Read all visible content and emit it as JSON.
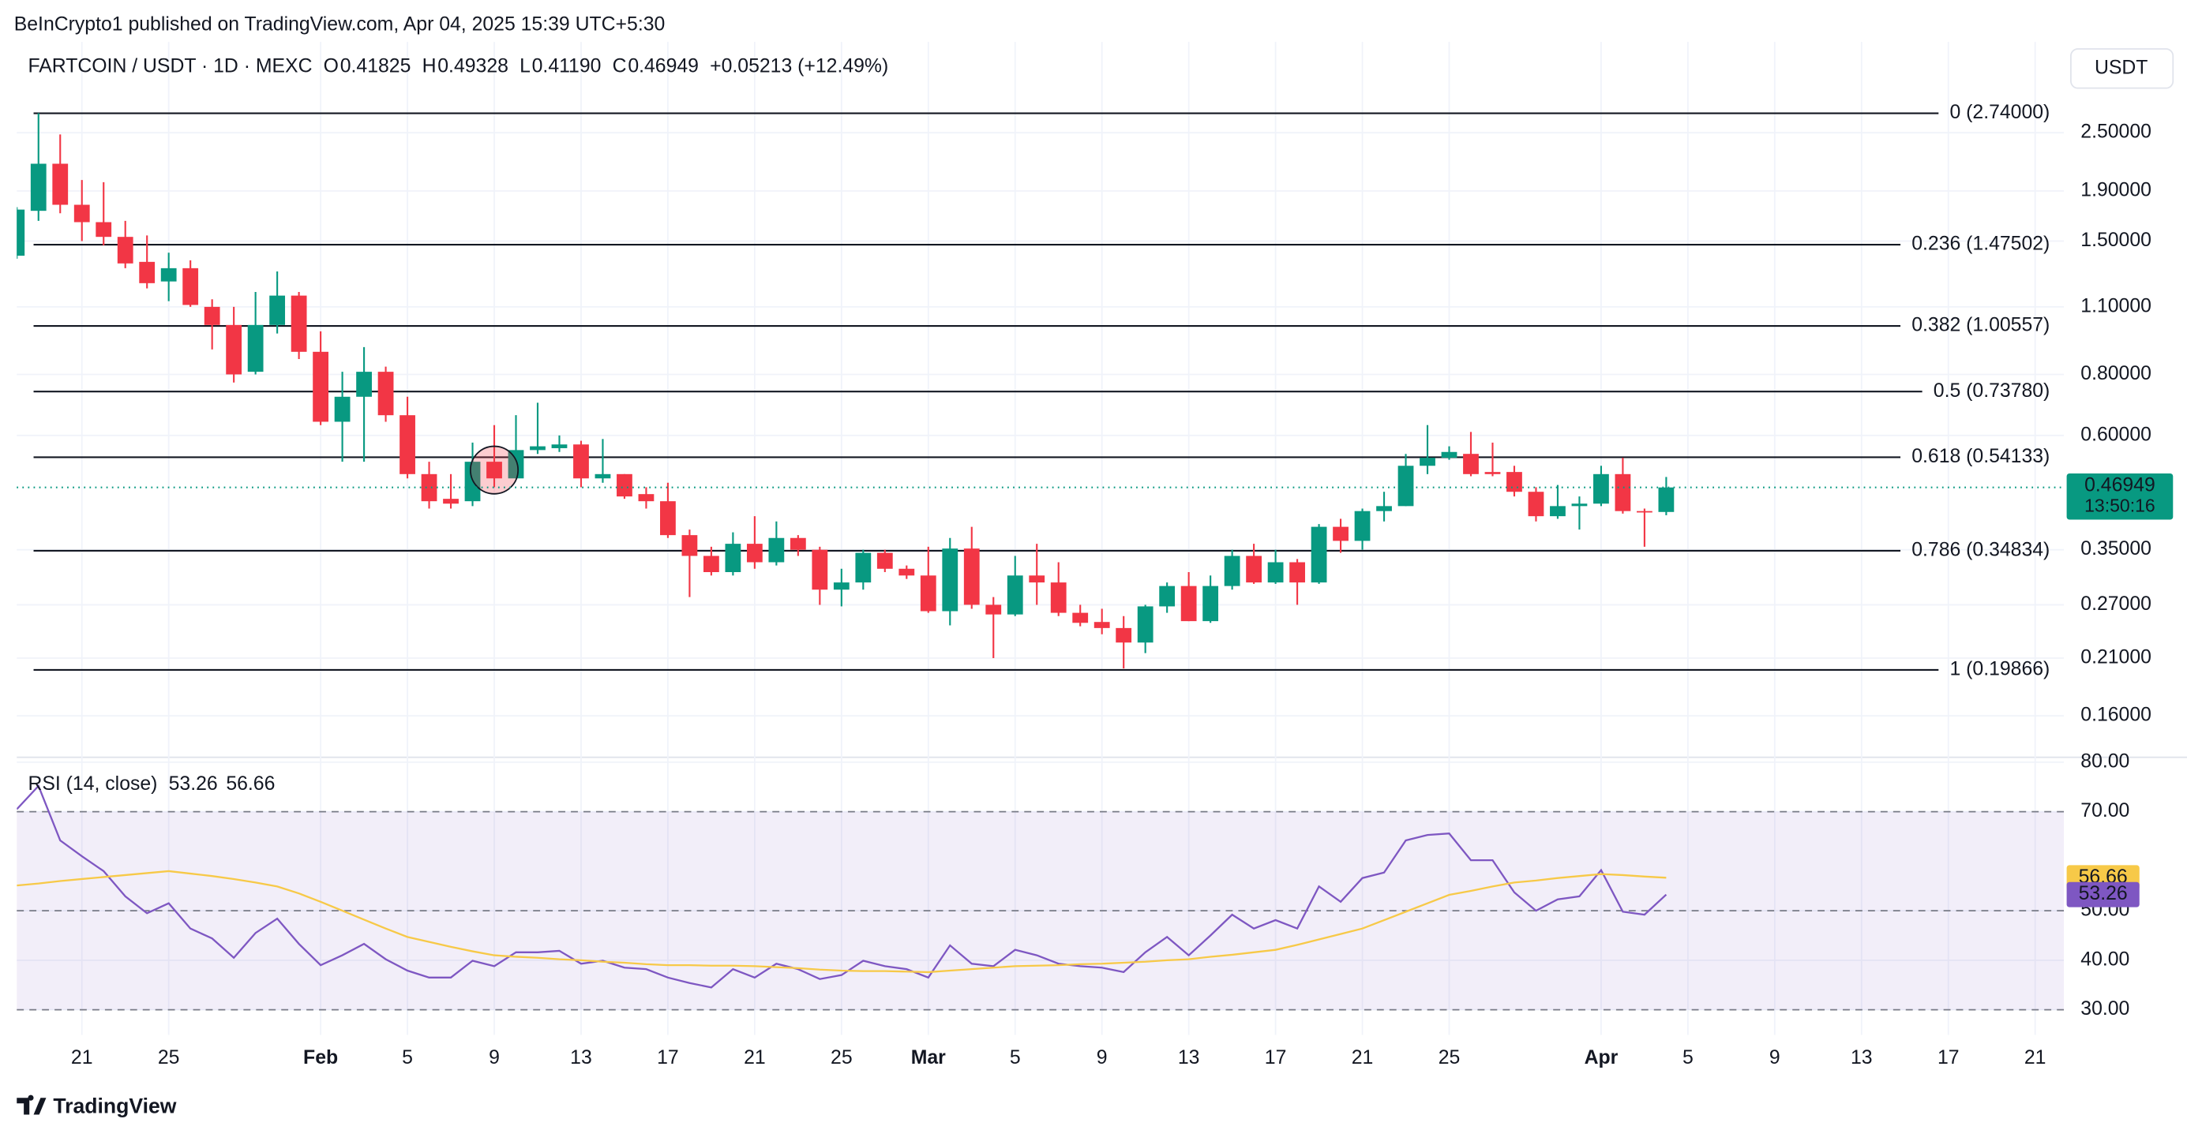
{
  "header": {
    "published": "BeInCrypto1 published on TradingView.com, Apr 04, 2025 15:39 UTC+5:30",
    "symbol": "FARTCOIN / USDT · 1D · MEXC",
    "ohlc": [
      {
        "key": "O",
        "value": "0.41825"
      },
      {
        "key": "H",
        "value": "0.49328"
      },
      {
        "key": "L",
        "value": "0.41190"
      },
      {
        "key": "C",
        "value": "0.46949"
      }
    ],
    "change": "+0.05213 (+12.49%)",
    "currency": "USDT",
    "countdown": "13:50:16",
    "logo": "TradingView"
  },
  "chart_data": [
    {
      "type": "candlestick",
      "log": true,
      "grid": true,
      "up_color": "#089981",
      "down_color": "#f23645",
      "xlim": [
        "2025-01-18",
        "2025-04-22"
      ],
      "x": [
        "2025-01-18",
        "2025-01-19",
        "2025-01-20",
        "2025-01-21",
        "2025-01-22",
        "2025-01-23",
        "2025-01-24",
        "2025-01-25",
        "2025-01-26",
        "2025-01-27",
        "2025-01-28",
        "2025-01-29",
        "2025-01-30",
        "2025-01-31",
        "2025-02-01",
        "2025-02-02",
        "2025-02-03",
        "2025-02-04",
        "2025-02-05",
        "2025-02-06",
        "2025-02-07",
        "2025-02-08",
        "2025-02-09",
        "2025-02-10",
        "2025-02-11",
        "2025-02-12",
        "2025-02-13",
        "2025-02-14",
        "2025-02-15",
        "2025-02-16",
        "2025-02-17",
        "2025-02-18",
        "2025-02-19",
        "2025-02-20",
        "2025-02-21",
        "2025-02-22",
        "2025-02-23",
        "2025-02-24",
        "2025-02-25",
        "2025-02-26",
        "2025-02-27",
        "2025-02-28",
        "2025-03-01",
        "2025-03-02",
        "2025-03-03",
        "2025-03-04",
        "2025-03-05",
        "2025-03-06",
        "2025-03-07",
        "2025-03-08",
        "2025-03-09",
        "2025-03-10",
        "2025-03-11",
        "2025-03-12",
        "2025-03-13",
        "2025-03-14",
        "2025-03-15",
        "2025-03-16",
        "2025-03-17",
        "2025-03-18",
        "2025-03-19",
        "2025-03-20",
        "2025-03-21",
        "2025-03-22",
        "2025-03-23",
        "2025-03-24",
        "2025-03-25",
        "2025-03-26",
        "2025-03-27",
        "2025-03-28",
        "2025-03-29",
        "2025-03-30",
        "2025-03-31",
        "2025-04-01",
        "2025-04-02",
        "2025-04-03",
        "2025-04-04"
      ],
      "open": [
        1.4,
        1.73,
        2.16,
        1.78,
        1.64,
        1.53,
        1.36,
        1.24,
        1.32,
        1.1,
        1.01,
        0.81,
        1.01,
        1.16,
        0.89,
        0.64,
        0.72,
        0.81,
        0.66,
        0.5,
        0.445,
        0.44,
        0.53,
        0.49,
        0.56,
        0.565,
        0.575,
        0.49,
        0.5,
        0.455,
        0.44,
        0.375,
        0.34,
        0.315,
        0.36,
        0.33,
        0.37,
        0.35,
        0.29,
        0.3,
        0.345,
        0.32,
        0.31,
        0.262,
        0.352,
        0.27,
        0.258,
        0.31,
        0.3,
        0.26,
        0.249,
        0.242,
        0.226,
        0.268,
        0.295,
        0.25,
        0.295,
        0.34,
        0.3,
        0.33,
        0.3,
        0.39,
        0.365,
        0.42,
        0.43,
        0.52,
        0.54,
        0.55,
        0.505,
        0.505,
        0.46,
        0.41,
        0.43,
        0.435,
        0.5,
        0.42,
        0.41825
      ],
      "high": [
        1.76,
        2.74,
        2.48,
        2.0,
        1.98,
        1.65,
        1.54,
        1.42,
        1.37,
        1.14,
        1.1,
        1.18,
        1.3,
        1.18,
        0.98,
        0.81,
        0.91,
        0.83,
        0.72,
        0.53,
        0.5,
        0.58,
        0.63,
        0.66,
        0.7,
        0.6,
        0.585,
        0.59,
        0.5,
        0.47,
        0.48,
        0.385,
        0.355,
        0.38,
        0.41,
        0.4,
        0.375,
        0.355,
        0.32,
        0.35,
        0.35,
        0.325,
        0.355,
        0.37,
        0.39,
        0.28,
        0.34,
        0.36,
        0.33,
        0.27,
        0.265,
        0.256,
        0.27,
        0.3,
        0.315,
        0.31,
        0.35,
        0.36,
        0.35,
        0.335,
        0.395,
        0.405,
        0.425,
        0.46,
        0.55,
        0.63,
        0.57,
        0.61,
        0.58,
        0.52,
        0.47,
        0.475,
        0.45,
        0.52,
        0.54,
        0.425,
        0.49328
      ],
      "low": [
        1.38,
        1.65,
        1.71,
        1.5,
        1.47,
        1.32,
        1.2,
        1.13,
        1.1,
        0.9,
        0.77,
        0.8,
        0.97,
        0.86,
        0.63,
        0.53,
        0.53,
        0.64,
        0.49,
        0.425,
        0.425,
        0.43,
        0.47,
        0.49,
        0.55,
        0.555,
        0.47,
        0.48,
        0.445,
        0.425,
        0.37,
        0.28,
        0.31,
        0.31,
        0.32,
        0.325,
        0.34,
        0.27,
        0.268,
        0.29,
        0.315,
        0.305,
        0.26,
        0.245,
        0.265,
        0.21,
        0.256,
        0.27,
        0.256,
        0.244,
        0.235,
        0.2,
        0.215,
        0.26,
        0.25,
        0.248,
        0.29,
        0.298,
        0.298,
        0.27,
        0.298,
        0.345,
        0.35,
        0.4,
        0.43,
        0.5,
        0.535,
        0.495,
        0.495,
        0.45,
        0.4,
        0.405,
        0.385,
        0.43,
        0.415,
        0.355,
        0.4119
      ],
      "close": [
        1.74,
        2.16,
        1.78,
        1.64,
        1.53,
        1.35,
        1.23,
        1.32,
        1.11,
        1.01,
        0.8,
        1.01,
        1.16,
        0.89,
        0.64,
        0.72,
        0.81,
        0.66,
        0.5,
        0.44,
        0.435,
        0.53,
        0.49,
        0.56,
        0.57,
        0.575,
        0.49,
        0.5,
        0.45,
        0.44,
        0.375,
        0.34,
        0.315,
        0.36,
        0.33,
        0.37,
        0.35,
        0.29,
        0.3,
        0.345,
        0.32,
        0.31,
        0.262,
        0.352,
        0.27,
        0.258,
        0.31,
        0.3,
        0.26,
        0.248,
        0.242,
        0.226,
        0.268,
        0.295,
        0.25,
        0.295,
        0.34,
        0.3,
        0.33,
        0.3,
        0.39,
        0.365,
        0.42,
        0.43,
        0.52,
        0.54,
        0.555,
        0.5,
        0.5,
        0.46,
        0.41,
        0.43,
        0.435,
        0.5,
        0.42,
        0.418,
        0.46949
      ],
      "ylim": [
        0.132,
        3.835
      ],
      "yticks": [
        {
          "value": 2.5,
          "label": "2.50000"
        },
        {
          "value": 1.9,
          "label": "1.90000"
        },
        {
          "value": 1.5,
          "label": "1.50000"
        },
        {
          "value": 1.1,
          "label": "1.10000"
        },
        {
          "value": 0.8,
          "label": "0.80000"
        },
        {
          "value": 0.6,
          "label": "0.60000"
        },
        {
          "value": 0.35,
          "label": "0.35000"
        },
        {
          "value": 0.27,
          "label": "0.27000"
        },
        {
          "value": 0.21,
          "label": "0.21000"
        },
        {
          "value": 0.16,
          "label": "0.16000"
        }
      ],
      "xticks": [
        {
          "value": "2025-01-21",
          "label": "21"
        },
        {
          "value": "2025-01-25",
          "label": "25"
        },
        {
          "value": "2025-02-01",
          "label": "Feb"
        },
        {
          "value": "2025-02-05",
          "label": "5"
        },
        {
          "value": "2025-02-09",
          "label": "9"
        },
        {
          "value": "2025-02-13",
          "label": "13"
        },
        {
          "value": "2025-02-17",
          "label": "17"
        },
        {
          "value": "2025-02-21",
          "label": "21"
        },
        {
          "value": "2025-02-25",
          "label": "25"
        },
        {
          "value": "2025-03-01",
          "label": "Mar"
        },
        {
          "value": "2025-03-05",
          "label": "5"
        },
        {
          "value": "2025-03-09",
          "label": "9"
        },
        {
          "value": "2025-03-13",
          "label": "13"
        },
        {
          "value": "2025-03-17",
          "label": "17"
        },
        {
          "value": "2025-03-21",
          "label": "21"
        },
        {
          "value": "2025-03-25",
          "label": "25"
        },
        {
          "value": "2025-04-01",
          "label": "Apr"
        },
        {
          "value": "2025-04-05",
          "label": "5"
        },
        {
          "value": "2025-04-09",
          "label": "9"
        },
        {
          "value": "2025-04-13",
          "label": "13"
        },
        {
          "value": "2025-04-17",
          "label": "17"
        },
        {
          "value": "2025-04-21",
          "label": "21"
        }
      ],
      "fib_levels": [
        {
          "value": 2.74,
          "label": "0 (2.74000)"
        },
        {
          "value": 1.47502,
          "label": "0.236 (1.47502)"
        },
        {
          "value": 1.00557,
          "label": "0.382 (1.00557)"
        },
        {
          "value": 0.7378,
          "label": "0.5 (0.73780)"
        },
        {
          "value": 0.54133,
          "label": "0.618 (0.54133)"
        },
        {
          "value": 0.34834,
          "label": "0.786 (0.34834)"
        },
        {
          "value": 0.19866,
          "label": "1 (0.19866)"
        }
      ]
    },
    {
      "type": "line",
      "title": "RSI (14, close)",
      "ylim": [
        24.92,
        81.13
      ],
      "yticks": [
        {
          "value": 80,
          "label": "80.00"
        },
        {
          "value": 70,
          "label": "70.00"
        },
        {
          "value": 50,
          "label": "50.00"
        },
        {
          "value": 40,
          "label": "40.00"
        },
        {
          "value": 30,
          "label": "30.00"
        }
      ],
      "levels": [
        70,
        50,
        30
      ],
      "series": [
        {
          "name": "RSI",
          "color": "#7e57c2",
          "values": [
            70.5,
            75.2,
            64.2,
            61,
            58,
            52.9,
            49.5,
            51.5,
            46.4,
            44.4,
            40.5,
            45.5,
            48.4,
            43.3,
            39,
            41,
            43.3,
            40.2,
            37.9,
            36.5,
            36.5,
            39.9,
            38.8,
            41.6,
            41.6,
            41.9,
            39.3,
            39.9,
            38.5,
            38.2,
            36.5,
            35.4,
            34.5,
            38.2,
            36.5,
            39.3,
            38.2,
            36.2,
            37,
            39.9,
            38.8,
            38.2,
            36.5,
            43,
            39.3,
            38.8,
            42.1,
            41,
            39.3,
            38.8,
            38.5,
            37.6,
            41.6,
            44.7,
            41,
            45,
            49.2,
            46.4,
            48.1,
            46.4,
            54.9,
            51.8,
            56.6,
            57.7,
            64.2,
            65.3,
            65.6,
            60.2,
            60.2,
            53.7,
            50,
            52.3,
            52.9,
            58.2,
            49.8,
            49.2,
            53.26
          ]
        },
        {
          "name": "RSI MA",
          "color": "#f7c948",
          "values": [
            55.1,
            55.5,
            56,
            56.4,
            56.8,
            57.2,
            57.6,
            58.0,
            57.5,
            57,
            56.4,
            55.7,
            54.9,
            53.5,
            51.8,
            50,
            48.2,
            46.4,
            44.7,
            43.7,
            42.7,
            41.8,
            41.0,
            40.7,
            40.5,
            40.2,
            40,
            39.7,
            39.5,
            39.2,
            39.0,
            39,
            38.9,
            38.9,
            38.8,
            38.6,
            38.4,
            38.1,
            37.9,
            37.8,
            37.8,
            37.7,
            37.6,
            37.9,
            38.2,
            38.5,
            38.8,
            38.9,
            39,
            39.2,
            39.3,
            39.5,
            39.7,
            40,
            40.2,
            40.7,
            41.1,
            41.6,
            42.1,
            43.1,
            44.2,
            45.3,
            46.4,
            48.1,
            49.8,
            51.5,
            53.2,
            54,
            54.9,
            55.7,
            56.1,
            56.6,
            57,
            57.4,
            57.2,
            56.9,
            56.66
          ]
        }
      ]
    }
  ]
}
